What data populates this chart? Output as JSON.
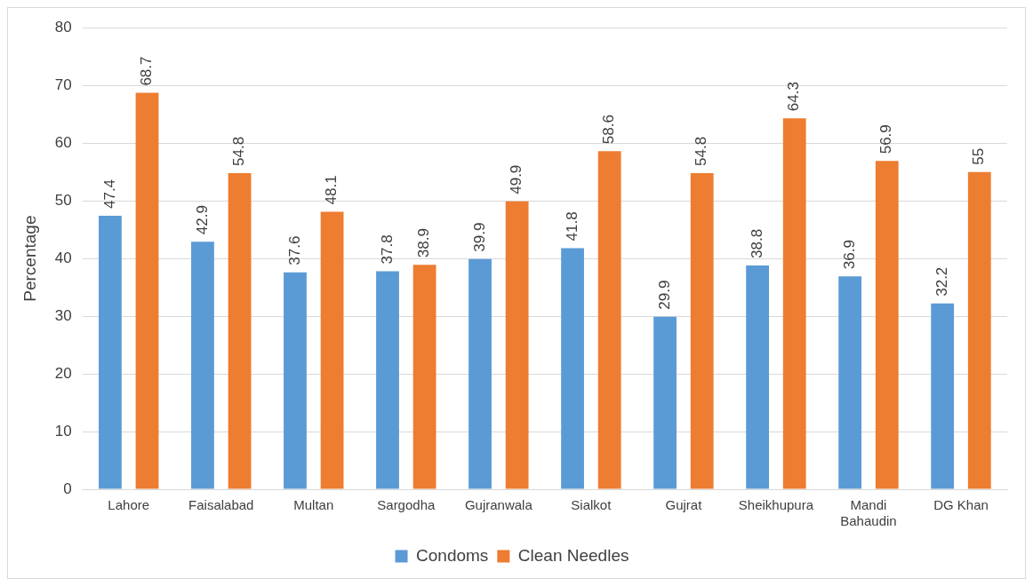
{
  "chart_data": {
    "type": "bar",
    "ylabel": "Percentage",
    "categories": [
      "Lahore",
      "Faisalabad",
      "Multan",
      "Sargodha",
      "Gujranwala",
      "Sialkot",
      "Gujrat",
      "Sheikhupura",
      "Mandi Bahaudin",
      "DG Khan"
    ],
    "series": [
      {
        "name": "Condoms",
        "color": "#5b9bd5",
        "values": [
          47.4,
          42.9,
          37.6,
          37.8,
          39.9,
          41.8,
          29.9,
          38.8,
          36.9,
          32.2
        ]
      },
      {
        "name": "Clean Needles",
        "color": "#ed7d31",
        "values": [
          68.7,
          54.8,
          48.1,
          38.9,
          49.9,
          58.6,
          54.8,
          64.3,
          56.9,
          55
        ]
      }
    ],
    "ylim": [
      0,
      80
    ],
    "yticks": [
      0,
      10,
      20,
      30,
      40,
      50,
      60,
      70,
      80
    ],
    "grid": "y",
    "legend": "bottom",
    "data_labels": true
  }
}
